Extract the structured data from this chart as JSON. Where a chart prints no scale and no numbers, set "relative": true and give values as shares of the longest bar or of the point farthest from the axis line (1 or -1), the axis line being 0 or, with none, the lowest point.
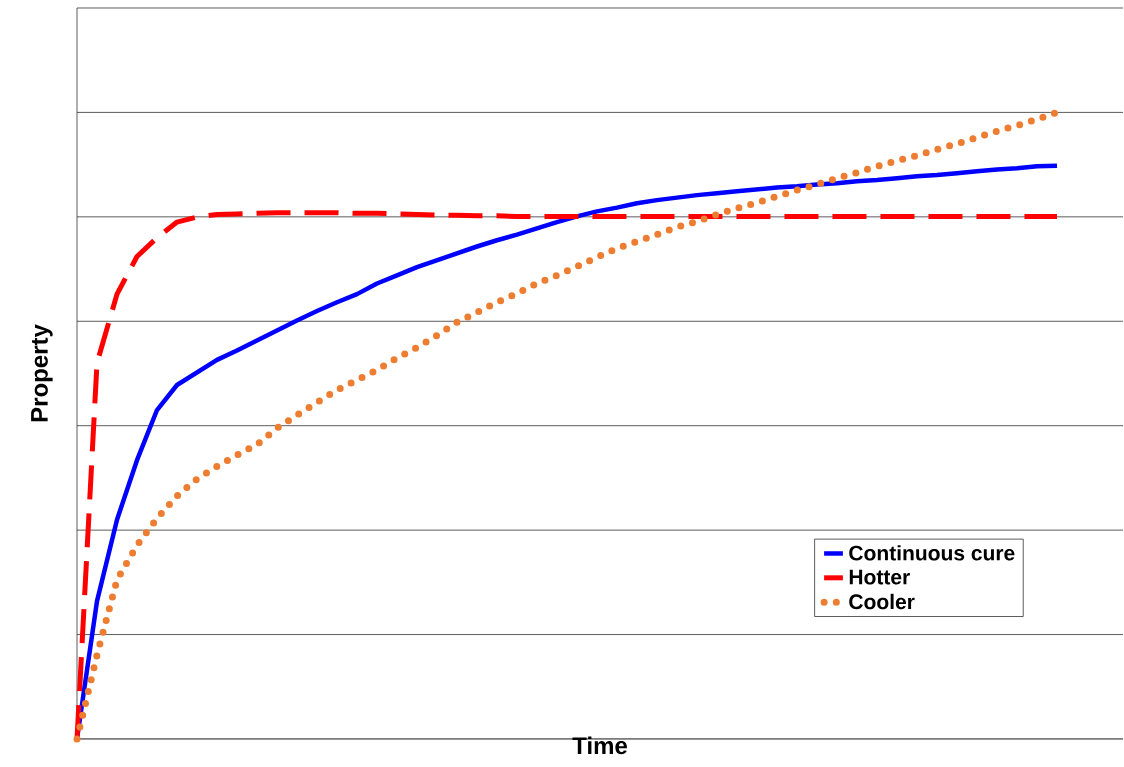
{
  "chart_data": {
    "type": "line",
    "xlabel": "Time",
    "ylabel": "Property",
    "relative": true,
    "grid": "y",
    "legend": "bottom right",
    "categories": [
      null,
      null,
      null,
      null,
      null,
      null,
      null,
      null,
      null,
      null,
      null,
      null,
      null,
      null,
      null,
      null,
      null,
      null,
      null,
      null,
      null,
      null,
      null,
      null,
      null,
      null,
      null,
      null,
      null,
      null,
      null,
      null,
      null,
      null,
      null,
      null,
      null,
      null,
      null,
      null,
      null,
      null,
      null,
      null,
      null,
      null,
      null,
      null,
      null,
      null
    ],
    "series": [
      {
        "name": "Continuous cure",
        "color": "#0000ff",
        "line_style": "solid",
        "values": [
          0,
          0.22,
          0.35,
          0.445,
          0.525,
          0.565,
          0.585,
          0.605,
          0.62,
          0.636,
          0.652,
          0.668,
          0.683,
          0.697,
          0.71,
          0.727,
          0.74,
          0.753,
          0.764,
          0.775,
          0.786,
          0.796,
          0.805,
          0.815,
          0.825,
          0.834,
          0.842,
          0.848,
          0.855,
          0.86,
          0.864,
          0.868,
          0.871,
          0.874,
          0.877,
          0.88,
          0.882,
          0.885,
          0.887,
          0.89,
          0.892,
          0.895,
          0.898,
          0.9,
          0.903,
          0.906,
          0.909,
          0.911,
          0.914,
          0.915
        ]
      },
      {
        "name": "Hotter",
        "color": "#ff0000",
        "line_style": "dashed",
        "values": [
          0,
          0.6,
          0.71,
          0.77,
          0.8,
          0.825,
          0.833,
          0.837,
          0.838,
          0.839,
          0.84,
          0.84,
          0.84,
          0.84,
          0.839,
          0.839,
          0.838,
          0.837,
          0.836,
          0.836,
          0.835,
          0.835,
          0.834,
          0.834,
          0.834,
          0.834,
          0.834,
          0.834,
          0.834,
          0.834,
          0.834,
          0.834,
          0.834,
          0.834,
          0.834,
          0.834,
          0.834,
          0.834,
          0.834,
          0.834,
          0.834,
          0.834,
          0.834,
          0.834,
          0.834,
          0.834,
          0.834,
          0.834,
          0.834,
          0.834
        ]
      },
      {
        "name": "Cooler",
        "color": "#ed7d31",
        "line_style": "dotted",
        "values": [
          0,
          0.134,
          0.254,
          0.309,
          0.352,
          0.388,
          0.415,
          0.435,
          0.453,
          0.47,
          0.496,
          0.517,
          0.537,
          0.557,
          0.573,
          0.589,
          0.608,
          0.625,
          0.644,
          0.665,
          0.681,
          0.697,
          0.711,
          0.727,
          0.74,
          0.754,
          0.769,
          0.783,
          0.794,
          0.805,
          0.817,
          0.826,
          0.837,
          0.847,
          0.856,
          0.866,
          0.876,
          0.885,
          0.895,
          0.904,
          0.914,
          0.923,
          0.931,
          0.941,
          0.95,
          0.96,
          0.97,
          0.979,
          0.989,
          1
        ]
      }
    ]
  }
}
